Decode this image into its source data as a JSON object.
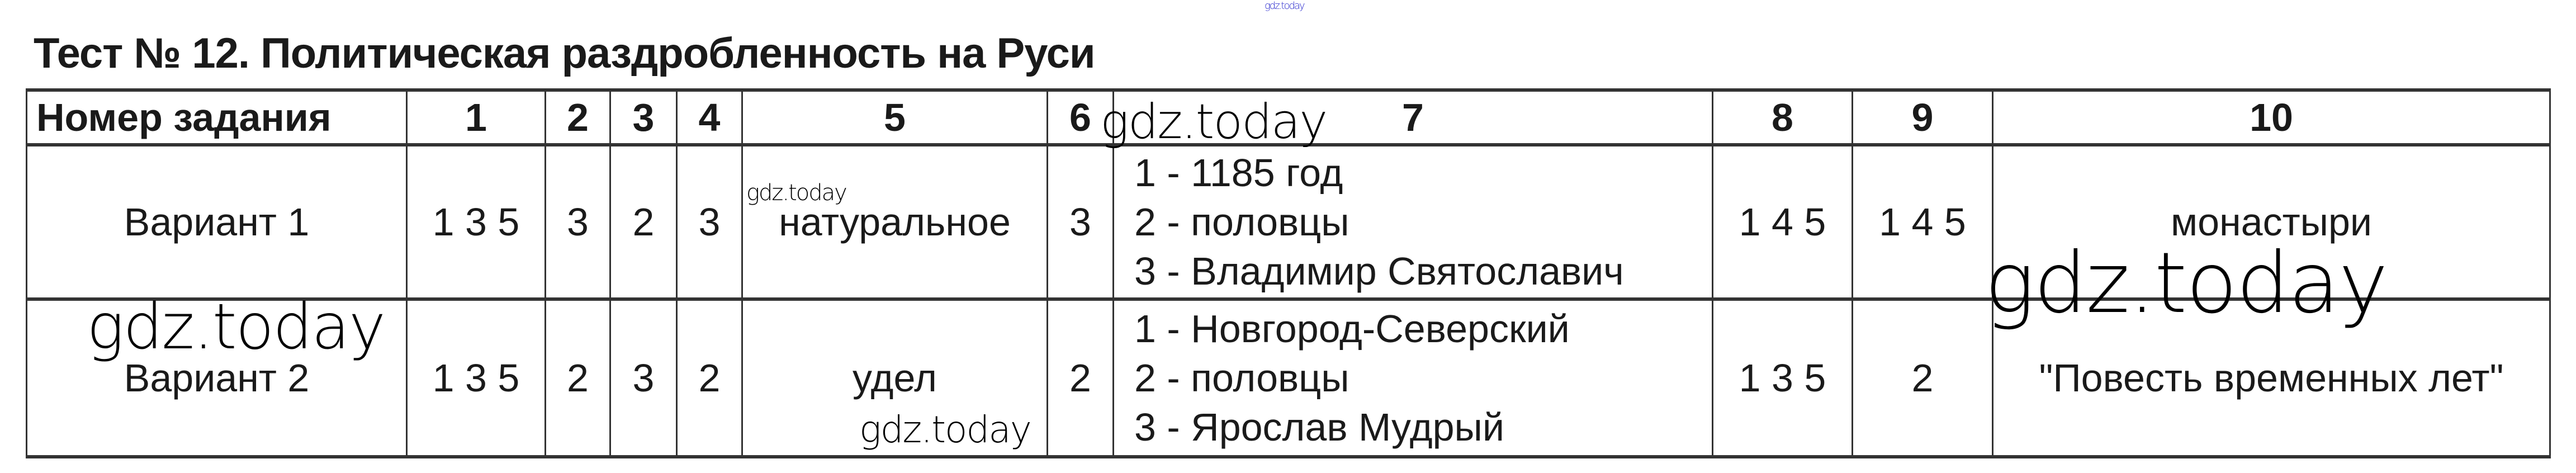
{
  "title": "Тест № 12. Политическая раздробленность на Руси",
  "table": {
    "headers": [
      "Номер задания",
      "1",
      "2",
      "3",
      "4",
      "5",
      "6",
      "7",
      "8",
      "9",
      "10"
    ],
    "rows": [
      {
        "label": "Вариант 1",
        "cells": [
          "1 3 5",
          "3",
          "2",
          "3",
          "натуральное",
          "3",
          [
            "1 - 1185 год",
            "2 - половцы",
            "3 - Владимир Святославич"
          ],
          "1 4 5",
          "1 4 5",
          "монастыри"
        ]
      },
      {
        "label": "Вариант 2",
        "cells": [
          "1 3 5",
          "2",
          "3",
          "2",
          "удел",
          "2",
          [
            "1 - Новгород-Северский",
            "2 - половцы",
            "3 - Ярослав Мудрый"
          ],
          "1 3 5",
          "2",
          "\"Повесть временных лет\""
        ]
      }
    ]
  },
  "watermarks": [
    "gdz.today",
    "gdz.today",
    "gdz.today",
    "gdz.today",
    "gdz.today",
    "gdz.today"
  ]
}
